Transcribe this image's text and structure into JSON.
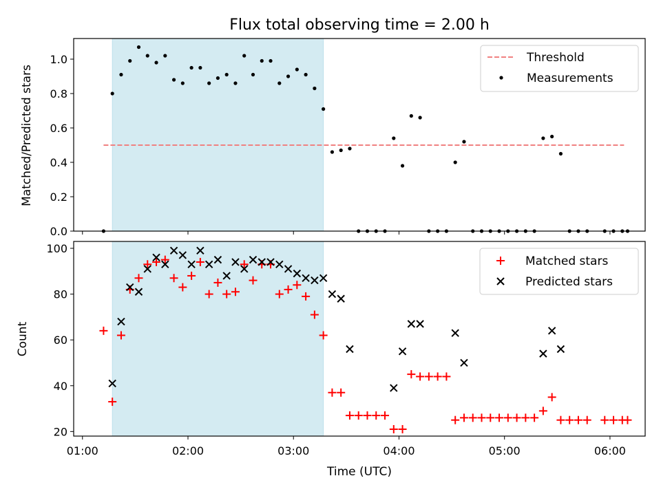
{
  "chart_data": [
    {
      "type": "scatter",
      "title": "Flux total observing time = 2.00 h",
      "ylabel": "Matched/Predicted stars",
      "xlim": [
        "00:55",
        "06:20"
      ],
      "ylim": [
        0,
        1.12
      ],
      "yticks": [
        "0.0",
        "0.2",
        "0.4",
        "0.6",
        "0.8",
        "1.0"
      ],
      "shaded_interval": [
        "01:17",
        "03:17"
      ],
      "threshold": {
        "name": "Threshold",
        "y": 0.5,
        "x_range": [
          "01:12",
          "06:08"
        ],
        "color": "#f08080"
      },
      "series": [
        {
          "name": "Measurements",
          "color": "#000000",
          "x": [
            "01:12",
            "01:17",
            "01:22",
            "01:27",
            "01:32",
            "01:37",
            "01:42",
            "01:47",
            "01:52",
            "01:57",
            "02:02",
            "02:07",
            "02:12",
            "02:17",
            "02:22",
            "02:27",
            "02:32",
            "02:37",
            "02:42",
            "02:47",
            "02:52",
            "02:57",
            "03:02",
            "03:07",
            "03:12",
            "03:17",
            "03:22",
            "03:27",
            "03:32",
            "03:37",
            "03:42",
            "03:47",
            "03:52",
            "03:57",
            "04:02",
            "04:07",
            "04:12",
            "04:17",
            "04:22",
            "04:27",
            "04:32",
            "04:37",
            "04:42",
            "04:47",
            "04:52",
            "04:57",
            "05:02",
            "05:07",
            "05:12",
            "05:17",
            "05:22",
            "05:27",
            "05:32",
            "05:37",
            "05:42",
            "05:47",
            "05:57",
            "06:02",
            "06:07",
            "06:10"
          ],
          "y": [
            0.0,
            0.8,
            0.91,
            0.99,
            1.07,
            1.02,
            0.98,
            1.02,
            0.88,
            0.86,
            0.95,
            0.95,
            0.86,
            0.89,
            0.91,
            0.86,
            1.02,
            0.91,
            0.99,
            0.99,
            0.86,
            0.9,
            0.94,
            0.91,
            0.83,
            0.71,
            0.46,
            0.47,
            0.48,
            0.0,
            0.0,
            0.0,
            0.0,
            0.54,
            0.38,
            0.67,
            0.66,
            0.0,
            0.0,
            0.0,
            0.4,
            0.52,
            0.0,
            0.0,
            0.0,
            0.0,
            0.0,
            0.0,
            0.0,
            0.0,
            0.54,
            0.55,
            0.45,
            0.0,
            0.0,
            0.0,
            0.0,
            0.0,
            0.0,
            0.0
          ]
        }
      ]
    },
    {
      "type": "scatter",
      "xlabel": "Time (UTC)",
      "ylabel": "Count",
      "xlim": [
        "00:55",
        "06:20"
      ],
      "ylim": [
        18,
        103
      ],
      "xticks": [
        "01:00",
        "02:00",
        "03:00",
        "04:00",
        "05:00",
        "06:00"
      ],
      "yticks": [
        "20",
        "40",
        "60",
        "80",
        "100"
      ],
      "shaded_interval": [
        "01:17",
        "03:17"
      ],
      "series": [
        {
          "name": "Matched stars",
          "marker": "+",
          "color": "#ff0000",
          "x": [
            "01:12",
            "01:17",
            "01:22",
            "01:27",
            "01:32",
            "01:37",
            "01:42",
            "01:47",
            "01:52",
            "01:57",
            "02:02",
            "02:07",
            "02:12",
            "02:17",
            "02:22",
            "02:27",
            "02:32",
            "02:37",
            "02:42",
            "02:47",
            "02:52",
            "02:57",
            "03:02",
            "03:07",
            "03:12",
            "03:17",
            "03:22",
            "03:27",
            "03:32",
            "03:37",
            "03:42",
            "03:47",
            "03:52",
            "03:57",
            "04:02",
            "04:07",
            "04:12",
            "04:17",
            "04:22",
            "04:27",
            "04:32",
            "04:37",
            "04:42",
            "04:47",
            "04:52",
            "04:57",
            "05:02",
            "05:07",
            "05:12",
            "05:17",
            "05:22",
            "05:27",
            "05:32",
            "05:37",
            "05:42",
            "05:47",
            "05:57",
            "06:02",
            "06:07",
            "06:10"
          ],
          "y": [
            64,
            33,
            62,
            82,
            87,
            93,
            94,
            95,
            87,
            83,
            88,
            94,
            80,
            85,
            80,
            81,
            93,
            86,
            93,
            93,
            80,
            82,
            84,
            79,
            71,
            62,
            37,
            37,
            27,
            27,
            27,
            27,
            27,
            21,
            21,
            45,
            44,
            44,
            44,
            44,
            25,
            26,
            26,
            26,
            26,
            26,
            26,
            26,
            26,
            26,
            29,
            35,
            25,
            25,
            25,
            25,
            25,
            25,
            25,
            25
          ]
        },
        {
          "name": "Predicted stars",
          "marker": "x",
          "color": "#000000",
          "x": [
            "01:17",
            "01:22",
            "01:27",
            "01:32",
            "01:37",
            "01:42",
            "01:47",
            "01:52",
            "01:57",
            "02:02",
            "02:07",
            "02:12",
            "02:17",
            "02:22",
            "02:27",
            "02:32",
            "02:37",
            "02:42",
            "02:47",
            "02:52",
            "02:57",
            "03:02",
            "03:07",
            "03:12",
            "03:17",
            "03:22",
            "03:27",
            "03:32",
            "03:57",
            "04:02",
            "04:07",
            "04:12",
            "04:32",
            "04:37",
            "05:22",
            "05:27",
            "05:32"
          ],
          "y": [
            41,
            68,
            83,
            81,
            91,
            96,
            93,
            99,
            97,
            93,
            99,
            93,
            95,
            88,
            94,
            91,
            95,
            94,
            94,
            93,
            91,
            89,
            87,
            86,
            87,
            80,
            78,
            56,
            39,
            55,
            67,
            67,
            63,
            50,
            54,
            64,
            56
          ]
        }
      ]
    }
  ]
}
